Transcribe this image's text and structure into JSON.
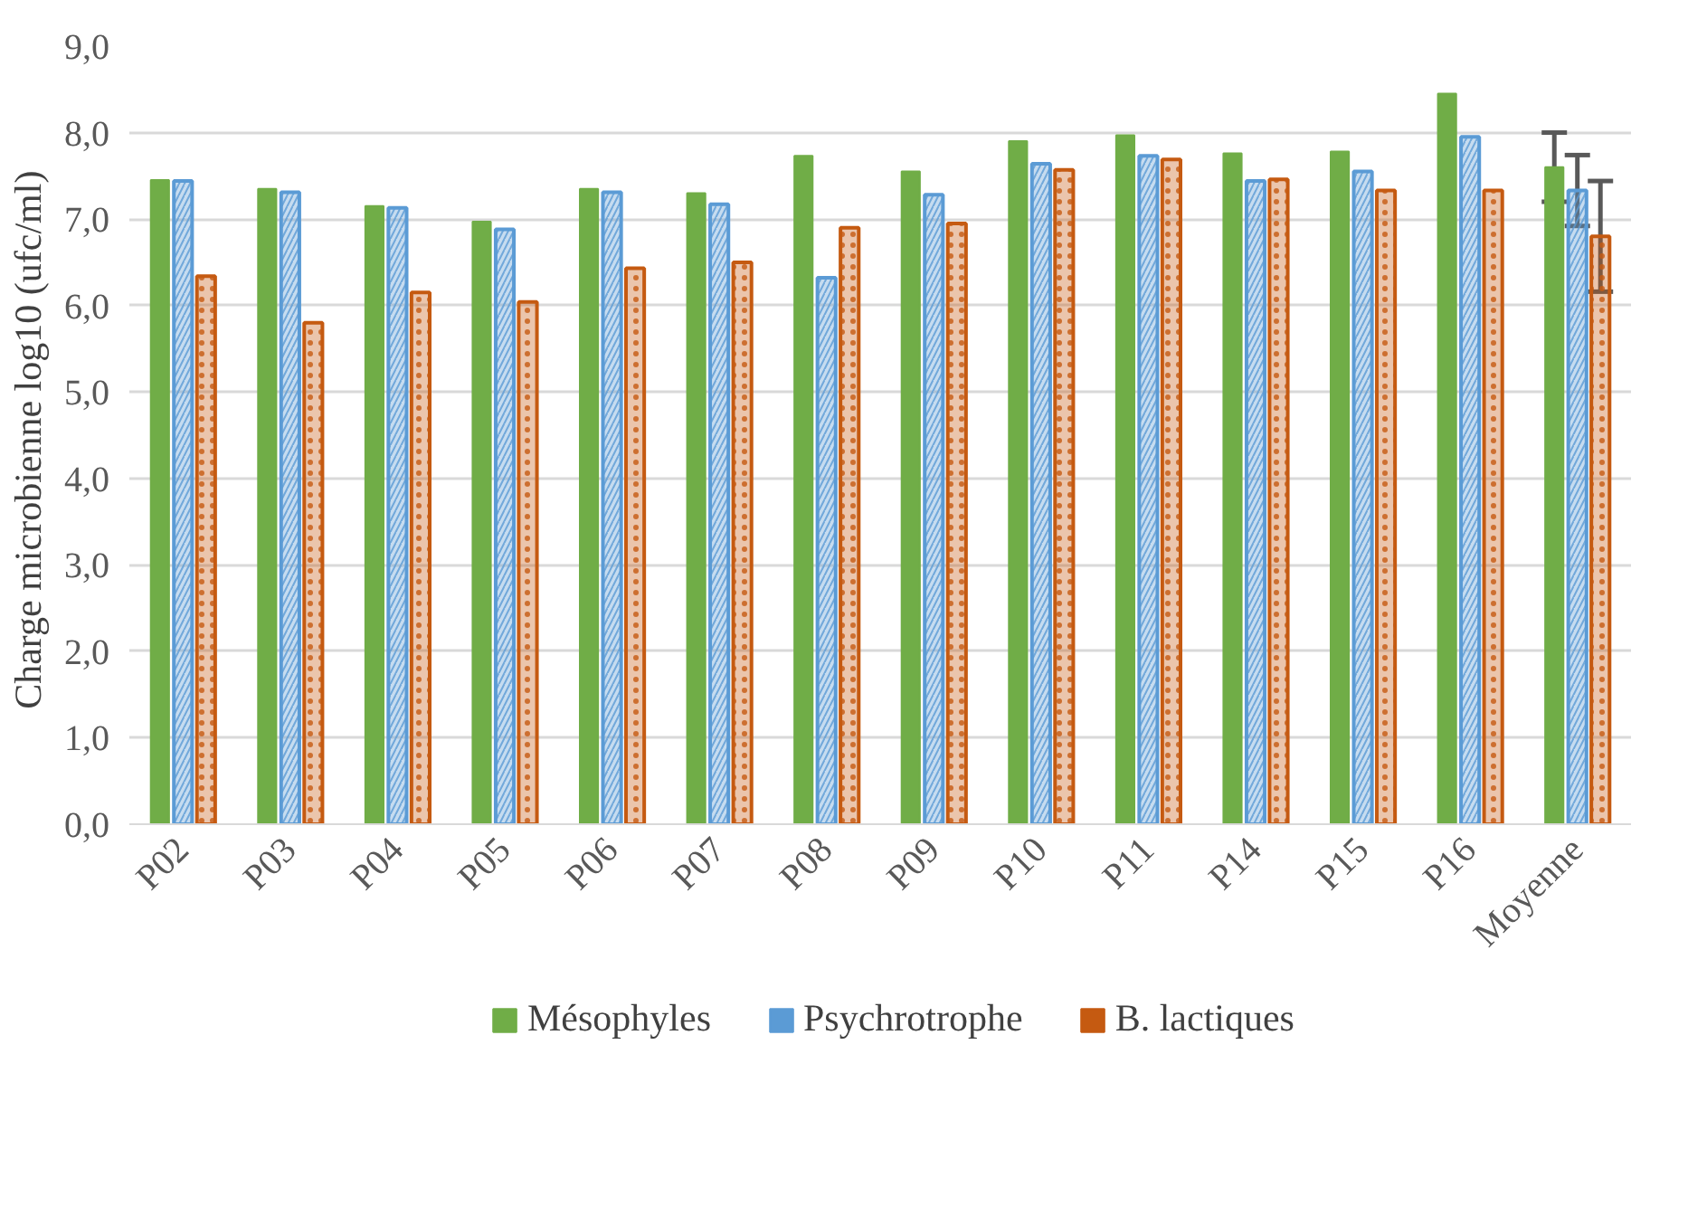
{
  "chart_data": {
    "type": "bar",
    "ylabel": "Charge microbienne log10  (ufc/ml)",
    "categories": [
      "P02",
      "P03",
      "P04",
      "P05",
      "P06",
      "P07",
      "P08",
      "P09",
      "P10",
      "P11",
      "P14",
      "P15",
      "P16",
      "Moyenne"
    ],
    "series": [
      {
        "name": "Mésophyles",
        "color": "#70ad47",
        "values": [
          7.45,
          7.35,
          7.15,
          6.97,
          7.35,
          7.3,
          7.73,
          7.55,
          7.9,
          7.97,
          7.76,
          7.78,
          8.45,
          7.6
        ],
        "errors": [
          null,
          null,
          null,
          null,
          null,
          null,
          null,
          null,
          null,
          null,
          null,
          null,
          null,
          0.4
        ]
      },
      {
        "name": "Psychrotrophe",
        "color": "#5b9bd5",
        "values": [
          7.44,
          7.31,
          7.13,
          6.88,
          7.31,
          7.17,
          6.32,
          7.28,
          7.64,
          7.73,
          7.44,
          7.55,
          7.95,
          7.33
        ],
        "errors": [
          null,
          null,
          null,
          null,
          null,
          null,
          null,
          null,
          null,
          null,
          null,
          null,
          null,
          0.41
        ]
      },
      {
        "name": "B. lactiques",
        "color": "#c55a11",
        "values": [
          6.34,
          5.8,
          6.15,
          6.04,
          6.43,
          6.5,
          6.9,
          6.95,
          7.57,
          7.69,
          7.46,
          7.33,
          7.33,
          6.8
        ],
        "errors": [
          null,
          null,
          null,
          null,
          null,
          null,
          null,
          null,
          null,
          null,
          null,
          null,
          null,
          0.64
        ]
      }
    ],
    "ylim": [
      0,
      9
    ],
    "yticks": [
      {
        "value": 0,
        "label": "0,0"
      },
      {
        "value": 1,
        "label": "1,0"
      },
      {
        "value": 2,
        "label": "2,0"
      },
      {
        "value": 3,
        "label": "3,0"
      },
      {
        "value": 4,
        "label": "4,0"
      },
      {
        "value": 5,
        "label": "5,0"
      },
      {
        "value": 6,
        "label": "6,0"
      },
      {
        "value": 7,
        "label": "7,0"
      },
      {
        "value": 8,
        "label": "8,0"
      },
      {
        "value": 9,
        "label": "9,0"
      }
    ],
    "grid": "y",
    "legend": "bottom"
  }
}
